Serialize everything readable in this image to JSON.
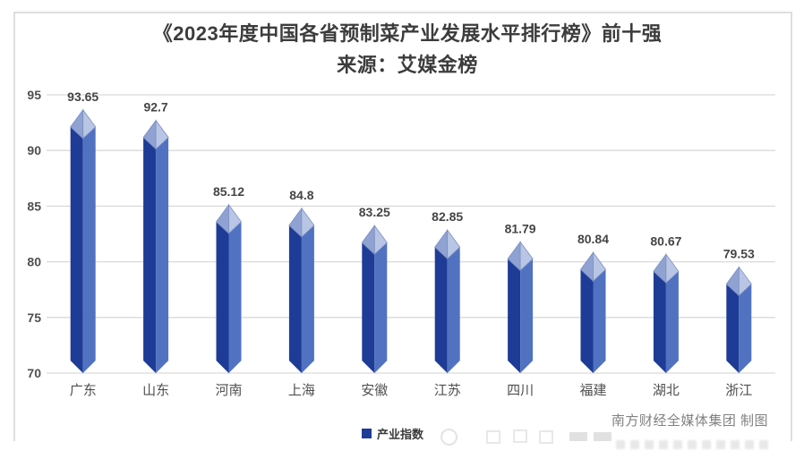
{
  "header": {
    "title": "《2023年度中国各省预制菜产业发展水平排行榜》前十强",
    "subtitle": "来源：艾媒金榜"
  },
  "legend": {
    "label": "产业指数"
  },
  "watermark": "南方财经全媒体集团 制图",
  "colors": {
    "bar_dark": "#1e3c96",
    "bar_light": "#5172c1",
    "cap_left": "#8fa2d2",
    "cap_right": "#b9c5e4",
    "cap_edge": "#7b8fc4",
    "gridline": "#d9d9d9",
    "axis_text": "#4f4f4f",
    "value_text": "#454545",
    "category_text": "#4f4f4f",
    "legend_swatch": "#1e3c96"
  },
  "chart_data": {
    "type": "bar",
    "title": "《2023年度中国各省预制菜产业发展水平排行榜》前十强",
    "subtitle": "来源：艾媒金榜",
    "categories": [
      "广东",
      "山东",
      "河南",
      "上海",
      "安徽",
      "江苏",
      "四川",
      "福建",
      "湖北",
      "浙江"
    ],
    "values": [
      93.65,
      92.7,
      85.12,
      84.8,
      83.25,
      82.85,
      81.79,
      80.84,
      80.67,
      79.53
    ],
    "series": [
      {
        "name": "产业指数",
        "values": [
          93.65,
          92.7,
          85.12,
          84.8,
          83.25,
          82.85,
          81.79,
          80.84,
          80.67,
          79.53
        ]
      }
    ],
    "xlabel": "",
    "ylabel": "",
    "ylim": [
      70,
      95
    ],
    "yticks": [
      70,
      75,
      80,
      85,
      90,
      95
    ],
    "grid": true,
    "legend": [
      "产业指数"
    ],
    "legend_position": "bottom",
    "bar_style": "3d-diamond-column"
  }
}
